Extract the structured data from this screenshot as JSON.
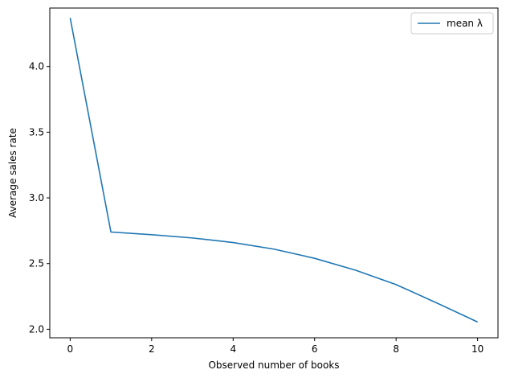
{
  "chart_data": {
    "type": "line",
    "title": "",
    "xlabel": "Observed number of books",
    "ylabel": "Average sales rate",
    "xlim": [
      -0.5,
      10.5
    ],
    "ylim": [
      1.935,
      4.445
    ],
    "xticks": [
      0,
      2,
      4,
      6,
      8,
      10
    ],
    "xtick_labels": [
      "0",
      "2",
      "4",
      "6",
      "8",
      "10"
    ],
    "yticks": [
      2.0,
      2.5,
      3.0,
      3.5,
      4.0
    ],
    "ytick_labels": [
      "2.0",
      "2.5",
      "3.0",
      "3.5",
      "4.0"
    ],
    "grid": false,
    "legend_position": "upper-right",
    "series": [
      {
        "name": "mean λ",
        "color": "#1f77b4",
        "x": [
          0,
          1,
          2,
          3,
          4,
          5,
          6,
          7,
          8,
          9,
          10
        ],
        "y": [
          4.37,
          2.74,
          2.72,
          2.695,
          2.66,
          2.61,
          2.54,
          2.45,
          2.34,
          2.2,
          2.055
        ]
      }
    ]
  }
}
